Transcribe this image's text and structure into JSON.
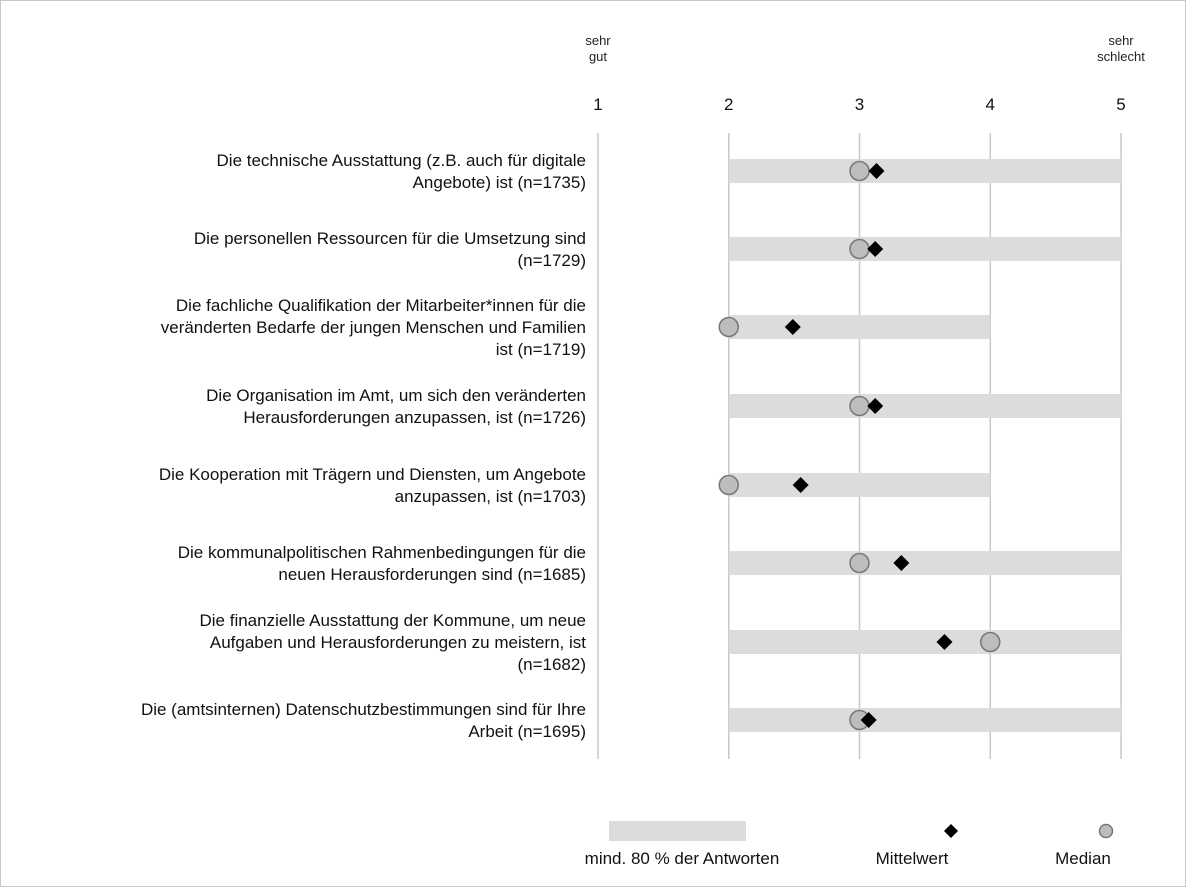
{
  "chart_data": {
    "type": "range-dot",
    "scale_anchor_left": [
      "sehr",
      "gut"
    ],
    "scale_anchor_right": [
      "sehr",
      "schlecht"
    ],
    "xlim": [
      1,
      5
    ],
    "ticks": [
      "1",
      "2",
      "3",
      "4",
      "5"
    ],
    "grid": true,
    "rows": [
      {
        "label_lines": [
          "Die technische Ausstattung (z.B. auch für digitale",
          "Angebote) ist (n=1735)"
        ],
        "range": [
          2,
          5
        ],
        "median": 3,
        "mean": 3.13
      },
      {
        "label_lines": [
          "Die personellen Ressourcen für die Umsetzung sind",
          "(n=1729)"
        ],
        "range": [
          2,
          5
        ],
        "median": 3,
        "mean": 3.12
      },
      {
        "label_lines": [
          "Die fachliche Qualifikation der Mitarbeiter*innen für die",
          "veränderten Bedarfe der jungen Menschen und Familien",
          "ist (n=1719)"
        ],
        "range": [
          2,
          4
        ],
        "median": 2,
        "mean": 2.49
      },
      {
        "label_lines": [
          "Die Organisation im Amt, um sich den veränderten",
          "Herausforderungen anzupassen, ist (n=1726)"
        ],
        "range": [
          2,
          5
        ],
        "median": 3,
        "mean": 3.12
      },
      {
        "label_lines": [
          "Die Kooperation mit Trägern und Diensten, um Angebote",
          "anzupassen, ist (n=1703)"
        ],
        "range": [
          2,
          4
        ],
        "median": 2,
        "mean": 2.55
      },
      {
        "label_lines": [
          "Die kommunalpolitischen Rahmenbedingungen für die",
          "neuen Herausforderungen sind (n=1685)"
        ],
        "range": [
          2,
          5
        ],
        "median": 3,
        "mean": 3.32
      },
      {
        "label_lines": [
          "Die finanzielle Ausstattung der Kommune, um neue",
          "Aufgaben und Herausforderungen zu meistern, ist",
          "(n=1682)"
        ],
        "range": [
          2,
          5
        ],
        "median": 4,
        "mean": 3.65
      },
      {
        "label_lines": [
          "Die (amtsinternen) Datenschutzbestimmungen sind für Ihre",
          "Arbeit (n=1695)"
        ],
        "range": [
          2,
          5
        ],
        "median": 3,
        "mean": 3.07
      }
    ],
    "legend": {
      "range": "mind. 80 % der Antworten",
      "mean": "Mittelwert",
      "median": "Median"
    },
    "colors": {
      "range": "#dcdcdc",
      "median_fill": "#bdbdbd",
      "median_stroke": "#777777",
      "mean": "#000000",
      "grid": "#c8c8c8"
    }
  }
}
